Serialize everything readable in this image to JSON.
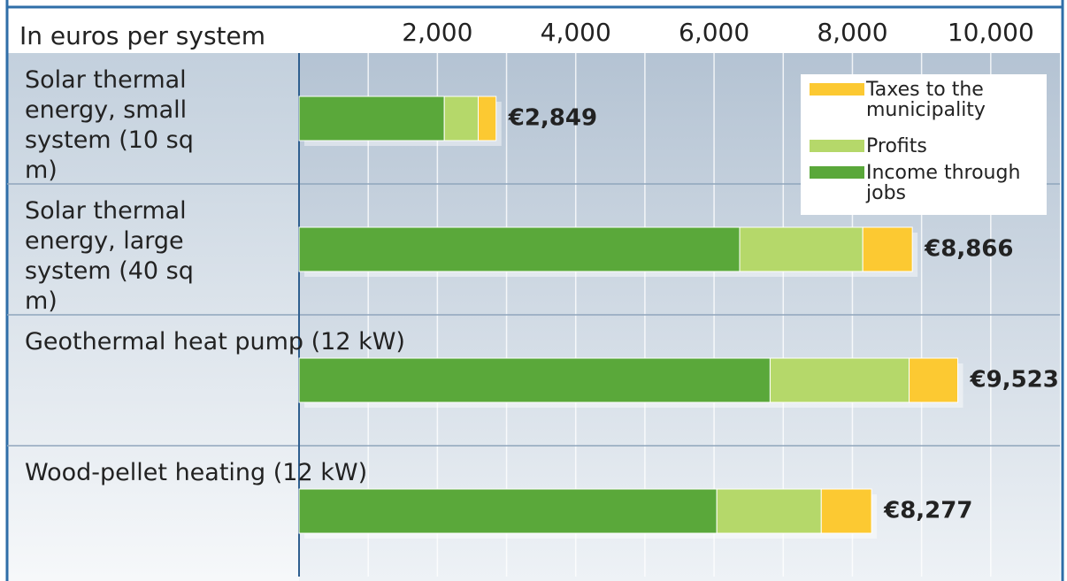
{
  "chart_data": {
    "type": "stacked_bar_horizontal",
    "axis_label": "In euros per system",
    "categories": [
      "Solar thermal energy, small system (10 sq m)",
      "Solar thermal energy, large system (40 sq m)",
      "Geothermal heat pump (12 kW)",
      "Wood-pellet heating (12 kW)"
    ],
    "series": [
      {
        "name": "Income through jobs",
        "color": "#5aa83a",
        "values": [
          2100,
          6370,
          6810,
          6040
        ]
      },
      {
        "name": "Profits",
        "color": "#b5d86a",
        "values": [
          490,
          1780,
          2010,
          1510
        ]
      },
      {
        "name": "Taxes to the municipality",
        "color": "#fcc932",
        "values": [
          259,
          716,
          703,
          727
        ]
      }
    ],
    "totals": [
      2849,
      8866,
      9523,
      8277
    ],
    "total_labels": [
      "€2,849",
      "€8,866",
      "€9,523",
      "€8,277"
    ],
    "xlim": [
      0,
      11000
    ],
    "xticks": [
      {
        "value": 2000,
        "label": "2,000"
      },
      {
        "value": 4000,
        "label": "4,000"
      },
      {
        "value": 6000,
        "label": "6,000"
      },
      {
        "value": 8000,
        "label": "8,000"
      },
      {
        "value": 10000,
        "label": "10,000"
      }
    ],
    "minor_xticks": [
      1000,
      3000,
      5000,
      7000,
      9000
    ],
    "grid": true,
    "legend": "top-right"
  }
}
